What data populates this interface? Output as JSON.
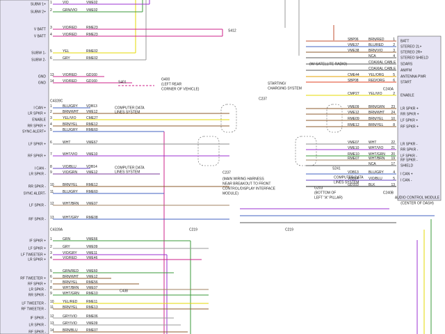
{
  "left_connector": {
    "ids": [
      "C4328C",
      "C4328A"
    ],
    "rows": [
      {
        "signal": "SUBW 1+",
        "pin": "1",
        "color": "VIO",
        "circuit": "VME02",
        "line": "#9b30d0"
      },
      {
        "signal": "SUBW 2+",
        "pin": "2",
        "color": "GRN/VIO",
        "circuit": "VME02",
        "line": "#3a9a3a"
      },
      {
        "signal": "V BATT",
        "pin": "3",
        "color": "VIO/RED",
        "circuit": "RME23",
        "line": "#cc2288"
      },
      {
        "signal": "V BATT",
        "pin": "4",
        "color": "VIO/RED",
        "circuit": "RME23",
        "line": "#cc2288"
      },
      {
        "signal": "SUBW 1-",
        "pin": "5",
        "color": "YEL",
        "circuit": "RME02",
        "line": "#e5d800"
      },
      {
        "signal": "SUBW 2-",
        "pin": "6",
        "color": "GRY",
        "circuit": "RME02",
        "line": "#999999"
      },
      {
        "signal": "GND",
        "pin": "13",
        "color": "VIO/RED",
        "circuit": "GD160",
        "line": "#cc2288"
      },
      {
        "signal": "GND",
        "pin": "14",
        "color": "VIO/RED",
        "circuit": "GD160",
        "line": "#cc2288"
      },
      {
        "signal": "I CAN +",
        "pin": "1",
        "color": "BLU/GRY",
        "circuit": "VDB13",
        "line": "#4060c0"
      },
      {
        "signal": "LR SPKR +",
        "pin": "2",
        "color": "BRN/WHT",
        "circuit": "VME12",
        "line": "#8b5a2b"
      },
      {
        "signal": "ENABLE",
        "pin": "3",
        "color": "YEL/VIO",
        "circuit": "CME27",
        "line": "#e5d800"
      },
      {
        "signal": "RR SPKR +",
        "pin": "4",
        "color": "BRN/YEL",
        "circuit": "RME12",
        "line": "#8b5a2b"
      },
      {
        "signal": "SYNC ALERT+",
        "pin": "5",
        "color": "BLU/GRY",
        "circuit": "RME60",
        "line": "#4060c0"
      },
      {
        "signal": "LF SPKR +",
        "pin": "6",
        "color": "WHT",
        "circuit": "VME67",
        "line": "#888888"
      },
      {
        "signal": "RF SPKR +",
        "pin": "7",
        "color": "WHT/VIO",
        "circuit": "VME10",
        "line": "#9b30d0"
      },
      {
        "signal": "I CAN -",
        "pin": "8",
        "color": "VIO/BLU",
        "circuit": "VDB14",
        "line": "#6040c0"
      },
      {
        "signal": "LR SPKR -",
        "pin": "9",
        "color": "VIO/GRN",
        "circuit": "VME12",
        "line": "#7a3a9a"
      },
      {
        "signal": "RR SPKR -",
        "pin": "10",
        "color": "BRN/YEL",
        "circuit": "RME12",
        "line": "#8b5a2b"
      },
      {
        "signal": "SYNC ALERT-",
        "pin": "11",
        "color": "BLU/GRY",
        "circuit": "RME60",
        "line": "#4060c0"
      },
      {
        "signal": "LF SPKR -",
        "pin": "12",
        "color": "WHT/BRN",
        "circuit": "VME07",
        "line": "#a08060"
      },
      {
        "signal": "RF SPKR -",
        "pin": "13",
        "color": "WHT/GRY",
        "circuit": "RME08",
        "line": "#4060c0"
      },
      {
        "signal": "IF SPKR +",
        "pin": "1",
        "color": "GRN",
        "circuit": "VME66",
        "line": "#3a9a3a"
      },
      {
        "signal": "LF SPKR +",
        "pin": "2",
        "color": "GRY",
        "circuit": "VME09",
        "line": "#999999"
      },
      {
        "signal": "LF TWEETER +",
        "pin": "3",
        "color": "VIO/GRY",
        "circuit": "VME11",
        "line": "#9b30d0"
      },
      {
        "signal": "LR SPKR +",
        "pin": "4",
        "color": "VIO/RED",
        "circuit": "VME46",
        "line": "#cc2288"
      },
      {
        "pin": "5",
        "color": "GRN/RED",
        "circuit": "VME60",
        "line": "#3a9a3a"
      },
      {
        "signal": "RF TWEETER +",
        "pin": "6",
        "color": "BRN/WHT",
        "circuit": "VME12",
        "line": "#8b5a2b"
      },
      {
        "signal": "RF SPKR +",
        "pin": "7",
        "color": "BRN/YEL",
        "circuit": "RME56",
        "line": "#8b5a2b"
      },
      {
        "signal": "LR SPKR -",
        "pin": "8",
        "color": "WHT/BRN",
        "circuit": "VME07",
        "line": "#a08060"
      },
      {
        "signal": "RR SPKR -",
        "pin": "9",
        "color": "WHT/GRN",
        "circuit": "RME10",
        "line": "#3a9a3a"
      },
      {
        "signal": "LF TWEETER -",
        "pin": "10",
        "color": "YEL/RED",
        "circuit": "RME11",
        "line": "#e5d800"
      },
      {
        "signal": "RF TWEETER -",
        "pin": "11",
        "color": "BRN/YEL",
        "circuit": "RME13",
        "line": "#8b5a2b"
      },
      {
        "signal": "IF SPKR -",
        "pin": "12",
        "color": "GRY/VIO",
        "circuit": "RME06",
        "line": "#999999"
      },
      {
        "signal": "LR SPKR -",
        "pin": "13",
        "color": "GRY/VIO",
        "circuit": "VME09",
        "line": "#999999"
      },
      {
        "signal": "RF SPKR -",
        "pin": "14",
        "color": "BRN/BLU",
        "circuit": "RME07",
        "line": "#8b5a2b"
      }
    ]
  },
  "right_module": {
    "name": "AUDIO CONTROL MODULE",
    "location": "(CENTER OF DASH)",
    "connectors": [
      "C240A",
      "C240B"
    ],
    "rows": [
      {
        "signal": "BATT",
        "pin": "1",
        "color": "BRN/RED",
        "circuit": "SBP06",
        "line": "#c05030"
      },
      {
        "signal": "STEREO 2L+",
        "pin": "2",
        "color": "BLU/RED",
        "circuit": "VME37",
        "line": "#4060c0"
      },
      {
        "signal": "STEREO 2R+",
        "pin": "3",
        "color": "BRN/VIO",
        "circuit": "VME38",
        "line": "#8b5a2b"
      },
      {
        "signal": "STEREO SHIELD",
        "pin": "4",
        "color": "NCA",
        "line": "#555555"
      },
      {
        "signal": "SDARS",
        "color": "COAXIAL CABLE",
        "line": "#555555"
      },
      {
        "signal": "AM/FM",
        "color": "COAXIAL CABLE",
        "line": "#555555"
      },
      {
        "signal": "ANTENNA PWR",
        "pin": "5",
        "color": "YEL/ORG",
        "circuit": "CME44",
        "line": "#e5a000"
      },
      {
        "signal": "START",
        "pin": "6",
        "color": "RED/ORG",
        "circuit": "SBP08",
        "line": "#e04020"
      },
      {
        "signal": "ENABLE",
        "pin": "2",
        "color": "YEL/VIO",
        "circuit": "CMP27",
        "line": "#e5d800"
      },
      {
        "signal": "LR SPKR +",
        "pin": "23",
        "color": "BRN/GRN",
        "circuit": "VME09",
        "line": "#8b5a2b"
      },
      {
        "signal": "RR SPKR +",
        "pin": "24",
        "color": "BRN/WHT",
        "circuit": "VME12",
        "line": "#8b5a2b"
      },
      {
        "signal": "LF SPKR +",
        "pin": "10",
        "color": "BRN/YEL",
        "circuit": "RME09",
        "line": "#8b5a2b"
      },
      {
        "signal": "RF SPKR +",
        "pin": "8",
        "color": "BRN/YEL",
        "circuit": "RME12",
        "line": "#8b5a2b"
      },
      {
        "signal": "LR SPKR -",
        "pin": "22",
        "color": "WHT",
        "circuit": "VME07",
        "line": "#888888"
      },
      {
        "signal": "RR SPKR -",
        "pin": "21",
        "color": "WHT/VIO",
        "circuit": "VME10",
        "line": "#9b30d0"
      },
      {
        "signal": "LF SPKR -",
        "pin": "20",
        "color": "WHT/GRN",
        "circuit": "RME10",
        "line": "#3a9a3a"
      },
      {
        "signal": "RF SPKR -",
        "pin": "19",
        "color": "WHT/BRN",
        "circuit": "RME07",
        "line": "#a08060"
      },
      {
        "signal": "SHIELD",
        "pin": "17",
        "color": "NCA",
        "line": "#555555"
      },
      {
        "signal": "I CAN +",
        "pin": "4",
        "color": "BLU/GRY",
        "circuit": "VDB13",
        "line": "#4060c0"
      },
      {
        "signal": "I CAN -",
        "pin": "5",
        "color": "VIO/BLU",
        "circuit": "VDB14",
        "line": "#6040c0"
      },
      {
        "pin": "13",
        "color": "BLK",
        "circuit": "GD103",
        "line": "#222222"
      }
    ]
  },
  "annotations": [
    "S412",
    "G400",
    "(LEFT REAR",
    "CORNER OF VEHICLE)",
    "S401",
    "STARTING/",
    "CHARGING SYSTEM",
    "(W/ SATELLITE RADIO)",
    "COMPUTER DATA",
    "LINES SYSTEM",
    "COMPUTER DATA",
    "LINES SYSTEM",
    "C237",
    "(MAIN WIRING HARNESS",
    "NEAR BREAKOUT TO FRONT",
    "CONTROL/DISPLAY INTERFACE",
    "MODULE)",
    "S241",
    "COMPUTER DATA",
    "LINES SYSTEM",
    "G203",
    "(BOTTOM OF",
    "LEFT \"A\" PILLAR)",
    "C219",
    "C438",
    "C237",
    "C219"
  ]
}
